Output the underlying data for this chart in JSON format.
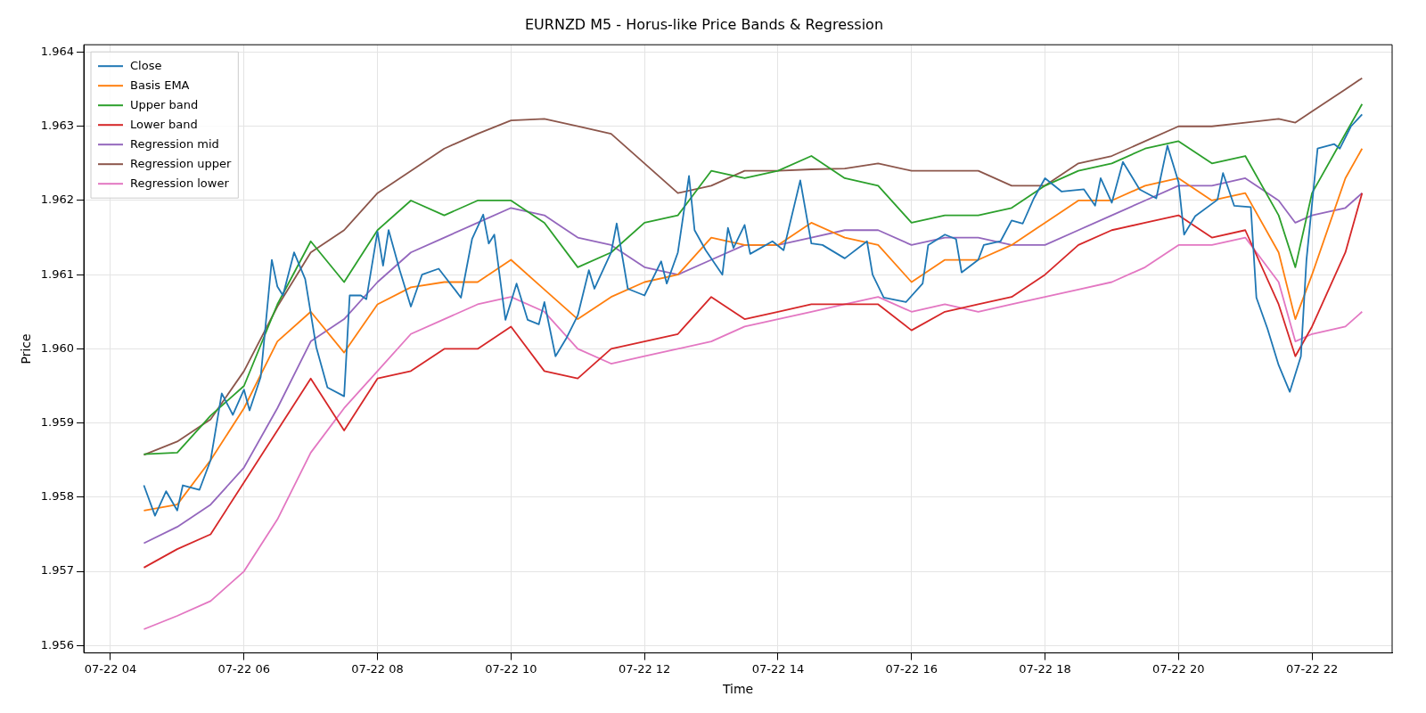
{
  "chart_data": {
    "type": "line",
    "title": "EURNZD M5 - Horus-like Price Bands & Regression",
    "xlabel": "Time",
    "ylabel": "Price",
    "x": [
      "--07-22T04:30",
      "--07-22T05:00",
      "--07-22T05:30",
      "--07-22T06:00",
      "--07-22T06:30",
      "--07-22T07:00",
      "--07-22T07:30",
      "--07-22T08:00",
      "--07-22T08:30",
      "--07-22T09:00",
      "--07-22T09:30",
      "--07-22T10:00",
      "--07-22T10:30",
      "--07-22T11:00",
      "--07-22T11:30",
      "--07-22T12:00",
      "--07-22T12:30",
      "--07-22T13:00",
      "--07-22T13:30",
      "--07-22T14:00",
      "--07-22T14:30",
      "--07-22T15:00",
      "--07-22T15:30",
      "--07-22T16:00",
      "--07-22T16:30",
      "--07-22T17:00",
      "--07-22T17:30",
      "--07-22T18:00",
      "--07-22T18:30",
      "--07-22T19:00",
      "--07-22T19:30",
      "--07-22T20:00",
      "--07-22T20:30",
      "--07-22T21:00",
      "--07-22T21:30",
      "--07-22T21:45",
      "--07-22T22:00",
      "--07-22T22:30",
      "--07-22T22:45"
    ],
    "xlim": [
      "--07-22T03:36",
      "--07-22T23:12"
    ],
    "xticks": [
      {
        "value": "--07-22T04:00",
        "label": "07-22 04"
      },
      {
        "value": "--07-22T06:00",
        "label": "07-22 06"
      },
      {
        "value": "--07-22T08:00",
        "label": "07-22 08"
      },
      {
        "value": "--07-22T10:00",
        "label": "07-22 10"
      },
      {
        "value": "--07-22T12:00",
        "label": "07-22 12"
      },
      {
        "value": "--07-22T14:00",
        "label": "07-22 14"
      },
      {
        "value": "--07-22T16:00",
        "label": "07-22 16"
      },
      {
        "value": "--07-22T18:00",
        "label": "07-22 18"
      },
      {
        "value": "--07-22T20:00",
        "label": "07-22 20"
      },
      {
        "value": "--07-22T22:00",
        "label": "07-22 22"
      }
    ],
    "ylim": [
      1.9559,
      1.9641
    ],
    "yticks": [
      1.956,
      1.957,
      1.958,
      1.959,
      {
        "value": 1.96,
        "label": "1.960"
      },
      1.961,
      1.962,
      1.963,
      1.964
    ],
    "grid": true,
    "legend": "top left",
    "marker": "none",
    "line_style": "solid",
    "series": [
      {
        "name": "Close",
        "color": "#1f77b4",
        "x": [
          "--07-22T04:30",
          "--07-22T04:40",
          "--07-22T04:50",
          "--07-22T05:00",
          "--07-22T05:05",
          "--07-22T05:20",
          "--07-22T05:30",
          "--07-22T05:40",
          "--07-22T05:50",
          "--07-22T06:00",
          "--07-22T06:05",
          "--07-22T06:15",
          "--07-22T06:25",
          "--07-22T06:30",
          "--07-22T06:35",
          "--07-22T06:45",
          "--07-22T06:55",
          "--07-22T07:05",
          "--07-22T07:15",
          "--07-22T07:30",
          "--07-22T07:35",
          "--07-22T07:45",
          "--07-22T07:50",
          "--07-22T08:00",
          "--07-22T08:05",
          "--07-22T08:10",
          "--07-22T08:20",
          "--07-22T08:30",
          "--07-22T08:40",
          "--07-22T08:55",
          "--07-22T09:10",
          "--07-22T09:15",
          "--07-22T09:25",
          "--07-22T09:35",
          "--07-22T09:40",
          "--07-22T09:45",
          "--07-22T09:55",
          "--07-22T10:05",
          "--07-22T10:15",
          "--07-22T10:25",
          "--07-22T10:30",
          "--07-22T10:40",
          "--07-22T10:50",
          "--07-22T11:00",
          "--07-22T11:10",
          "--07-22T11:15",
          "--07-22T11:30",
          "--07-22T11:35",
          "--07-22T11:45",
          "--07-22T12:00",
          "--07-22T12:15",
          "--07-22T12:20",
          "--07-22T12:30",
          "--07-22T12:40",
          "--07-22T12:45",
          "--07-22T12:55",
          "--07-22T13:10",
          "--07-22T13:15",
          "--07-22T13:20",
          "--07-22T13:30",
          "--07-22T13:35",
          "--07-22T13:55",
          "--07-22T14:05",
          "--07-22T14:20",
          "--07-22T14:30",
          "--07-22T14:40",
          "--07-22T15:00",
          "--07-22T15:20",
          "--07-22T15:25",
          "--07-22T15:35",
          "--07-22T15:55",
          "--07-22T16:10",
          "--07-22T16:15",
          "--07-22T16:30",
          "--07-22T16:40",
          "--07-22T16:45",
          "--07-22T17:00",
          "--07-22T17:05",
          "--07-22T17:20",
          "--07-22T17:30",
          "--07-22T17:40",
          "--07-22T17:50",
          "--07-22T18:00",
          "--07-22T18:15",
          "--07-22T18:35",
          "--07-22T18:45",
          "--07-22T18:50",
          "--07-22T19:00",
          "--07-22T19:10",
          "--07-22T19:25",
          "--07-22T19:40",
          "--07-22T19:50",
          "--07-22T20:00",
          "--07-22T20:05",
          "--07-22T20:15",
          "--07-22T20:35",
          "--07-22T20:40",
          "--07-22T20:50",
          "--07-22T21:05",
          "--07-22T21:10",
          "--07-22T21:20",
          "--07-22T21:30",
          "--07-22T21:40",
          "--07-22T21:50",
          "--07-22T21:55",
          "--07-22T22:05",
          "--07-22T22:20",
          "--07-22T22:25",
          "--07-22T22:35",
          "--07-22T22:45"
        ],
        "values": [
          1.95816,
          1.95775,
          1.95808,
          1.95782,
          1.95816,
          1.9581,
          1.9585,
          1.9594,
          1.95911,
          1.95945,
          1.95917,
          1.95962,
          1.9612,
          1.96084,
          1.96072,
          1.9613,
          1.96094,
          1.96002,
          1.95948,
          1.95936,
          1.96072,
          1.96072,
          1.96067,
          1.96158,
          1.96112,
          1.9616,
          1.96106,
          1.96057,
          1.961,
          1.96108,
          1.96079,
          1.96069,
          1.96148,
          1.96181,
          1.96142,
          1.96154,
          1.96039,
          1.96088,
          1.96039,
          1.96033,
          1.96063,
          1.9599,
          1.96015,
          1.96045,
          1.96106,
          1.96081,
          1.9613,
          1.96169,
          1.96081,
          1.96072,
          1.96118,
          1.96088,
          1.9613,
          1.96233,
          1.9616,
          1.96133,
          1.961,
          1.96163,
          1.96136,
          1.96167,
          1.96128,
          1.96145,
          1.96133,
          1.96227,
          1.96142,
          1.9614,
          1.96122,
          1.96145,
          1.961,
          1.96069,
          1.96063,
          1.96088,
          1.9614,
          1.96154,
          1.96148,
          1.96103,
          1.9612,
          1.9614,
          1.96145,
          1.96173,
          1.96169,
          1.96203,
          1.9623,
          1.96212,
          1.96215,
          1.96193,
          1.9623,
          1.96197,
          1.96252,
          1.96215,
          1.96203,
          1.96274,
          1.96225,
          1.96154,
          1.96179,
          1.96201,
          1.96237,
          1.96193,
          1.96191,
          1.96069,
          1.96027,
          1.95978,
          1.95942,
          1.9599,
          1.9612,
          1.9627,
          1.96276,
          1.9627,
          1.963,
          1.96316
        ]
      },
      {
        "name": "Basis EMA",
        "color": "#ff7f0e",
        "values": [
          1.95782,
          1.9579,
          1.9585,
          1.9592,
          1.9601,
          1.9605,
          1.95995,
          1.9606,
          1.96083,
          1.9609,
          1.9609,
          1.9612,
          1.9608,
          1.9604,
          1.9607,
          1.9609,
          1.961,
          1.9615,
          1.9614,
          1.9614,
          1.9617,
          1.9615,
          1.9614,
          1.9609,
          1.9612,
          1.9612,
          1.9614,
          1.9617,
          1.962,
          1.962,
          1.9622,
          1.9623,
          1.962,
          1.9621,
          1.9613,
          1.9604,
          1.961,
          1.9623,
          1.9627
        ]
      },
      {
        "name": "Upper band",
        "color": "#2ca02c",
        "values": [
          1.95858,
          1.9586,
          1.9591,
          1.9595,
          1.9606,
          1.96145,
          1.9609,
          1.9616,
          1.962,
          1.9618,
          1.962,
          1.962,
          1.9617,
          1.9611,
          1.9613,
          1.9617,
          1.9618,
          1.9624,
          1.9623,
          1.9624,
          1.9626,
          1.9623,
          1.9622,
          1.9617,
          1.9618,
          1.9618,
          1.9619,
          1.9622,
          1.9624,
          1.9625,
          1.9627,
          1.9628,
          1.9625,
          1.9626,
          1.9618,
          1.9611,
          1.9621,
          1.9629,
          1.9633
        ]
      },
      {
        "name": "Lower band",
        "color": "#d62728",
        "values": [
          1.95705,
          1.9573,
          1.9575,
          1.9582,
          1.9589,
          1.9596,
          1.9589,
          1.9596,
          1.9597,
          1.96,
          1.96,
          1.9603,
          1.9597,
          1.9596,
          1.96,
          1.9601,
          1.9602,
          1.9607,
          1.9604,
          1.9605,
          1.9606,
          1.9606,
          1.9606,
          1.96025,
          1.9605,
          1.9606,
          1.9607,
          1.961,
          1.9614,
          1.9616,
          1.9617,
          1.9618,
          1.9615,
          1.9616,
          1.9606,
          1.9599,
          1.9603,
          1.9613,
          1.9621
        ]
      },
      {
        "name": "Regression mid",
        "color": "#9467bd",
        "values": [
          1.95738,
          1.9576,
          1.9579,
          1.9584,
          1.9592,
          1.9601,
          1.9604,
          1.9609,
          1.9613,
          1.9615,
          1.9617,
          1.9619,
          1.9618,
          1.9615,
          1.9614,
          1.9611,
          1.961,
          1.9612,
          1.9614,
          1.9614,
          1.9615,
          1.9616,
          1.9616,
          1.9614,
          1.9615,
          1.9615,
          1.9614,
          1.9614,
          1.9616,
          1.9618,
          1.962,
          1.9622,
          1.9622,
          1.9623,
          1.962,
          1.9617,
          1.9618,
          1.9619,
          1.9621
        ]
      },
      {
        "name": "Regression upper",
        "color": "#8c564b",
        "values": [
          1.95857,
          1.95875,
          1.95905,
          1.9597,
          1.96057,
          1.9613,
          1.9616,
          1.9621,
          1.9624,
          1.9627,
          1.9629,
          1.96308,
          1.9631,
          1.963,
          1.9629,
          1.9625,
          1.9621,
          1.9622,
          1.9624,
          1.9624,
          1.96242,
          1.96243,
          1.9625,
          1.9624,
          1.9624,
          1.9624,
          1.9622,
          1.9622,
          1.9625,
          1.9626,
          1.9628,
          1.963,
          1.963,
          1.96305,
          1.9631,
          1.96305,
          1.9632,
          1.9635,
          1.96365
        ]
      },
      {
        "name": "Regression lower",
        "color": "#e377c2",
        "values": [
          1.95622,
          1.9564,
          1.9566,
          1.957,
          1.9577,
          1.9586,
          1.9592,
          1.9597,
          1.9602,
          1.9604,
          1.9606,
          1.9607,
          1.9605,
          1.96,
          1.9598,
          1.9599,
          1.96,
          1.9601,
          1.9603,
          1.9604,
          1.9605,
          1.9606,
          1.9607,
          1.9605,
          1.9606,
          1.9605,
          1.9606,
          1.9607,
          1.9608,
          1.9609,
          1.9611,
          1.9614,
          1.9614,
          1.9615,
          1.9609,
          1.9601,
          1.9602,
          1.9603,
          1.9605
        ]
      }
    ]
  }
}
